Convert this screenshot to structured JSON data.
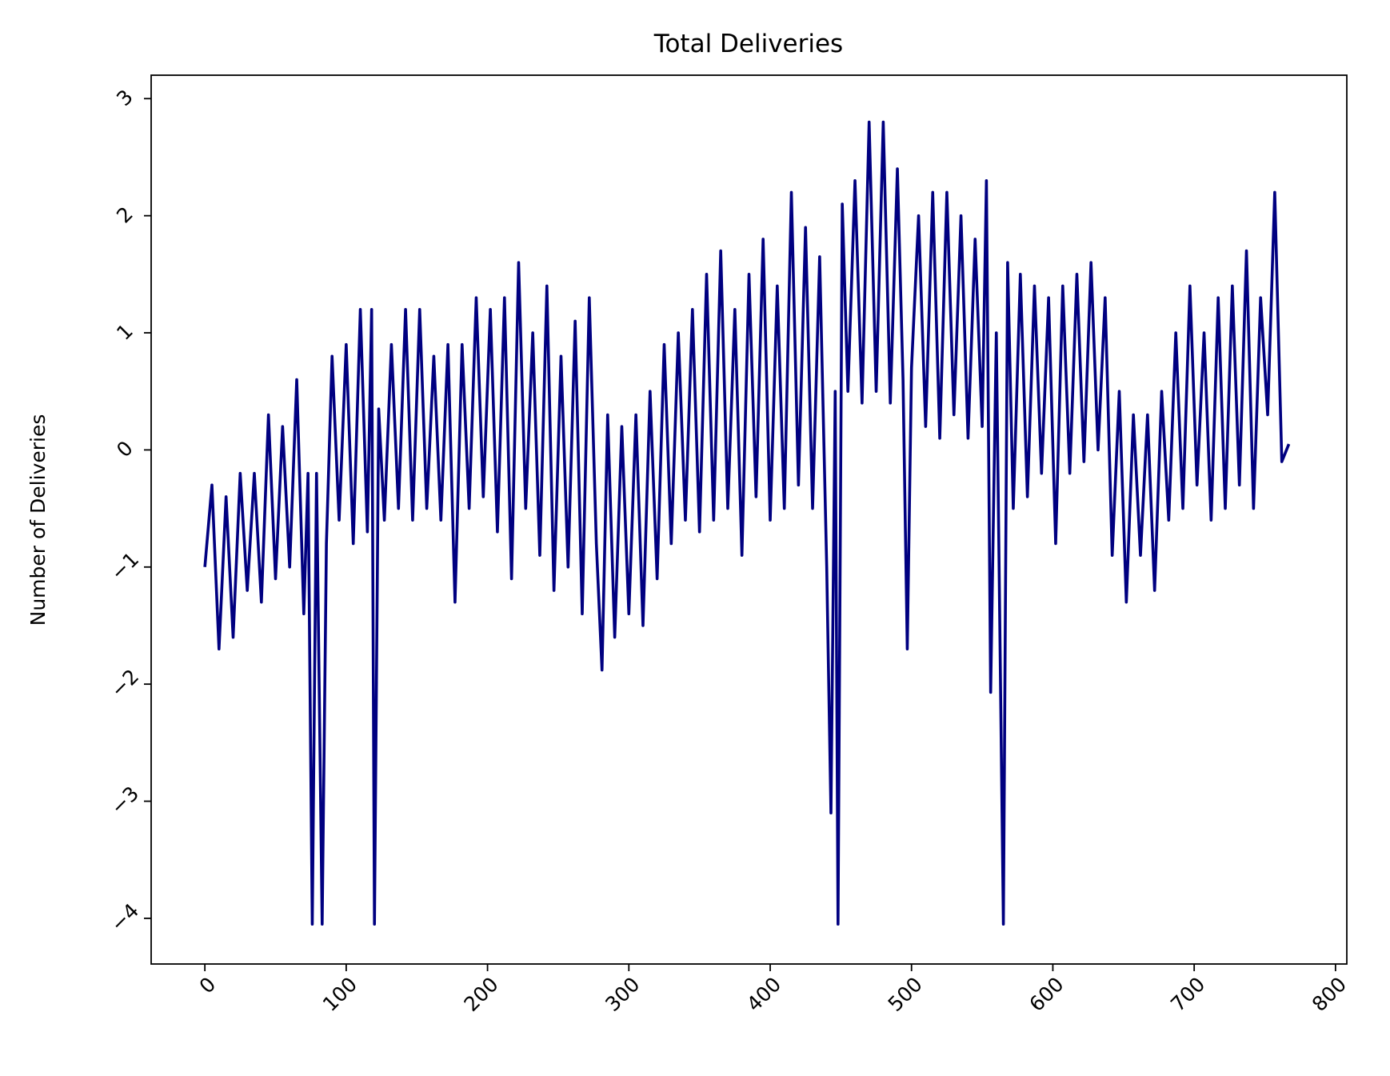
{
  "chart_data": {
    "type": "line",
    "title": "Total Deliveries",
    "y_label": "Number of Deliveries",
    "xlim": [
      -38,
      808
    ],
    "ylim": [
      -4.39,
      3.2
    ],
    "xticks": [
      0,
      100,
      200,
      300,
      400,
      500,
      600,
      700,
      800
    ],
    "yticks": [
      {
        "value": -4,
        "label": "−4"
      },
      {
        "value": -3,
        "label": "−3"
      },
      {
        "value": -2,
        "label": "−2"
      },
      {
        "value": -1,
        "label": "−1"
      },
      0,
      1,
      2,
      3
    ],
    "grid": false,
    "series": [
      {
        "name": "Total Deliveries",
        "color": "#000080",
        "x": [
          0,
          5,
          10,
          15,
          20,
          25,
          30,
          35,
          40,
          45,
          50,
          55,
          60,
          65,
          70,
          73,
          76,
          79,
          83,
          86,
          90,
          95,
          100,
          105,
          110,
          115,
          118,
          120,
          123,
          127,
          132,
          137,
          142,
          147,
          152,
          157,
          162,
          167,
          172,
          177,
          182,
          187,
          192,
          197,
          202,
          207,
          212,
          217,
          222,
          227,
          232,
          237,
          242,
          247,
          252,
          257,
          262,
          267,
          272,
          277,
          281,
          285,
          290,
          295,
          300,
          305,
          310,
          315,
          320,
          325,
          330,
          335,
          340,
          345,
          350,
          355,
          360,
          365,
          370,
          375,
          380,
          385,
          390,
          395,
          400,
          405,
          410,
          415,
          420,
          425,
          430,
          435,
          440,
          443,
          446,
          448,
          451,
          455,
          460,
          465,
          470,
          475,
          480,
          485,
          490,
          494,
          497,
          500,
          505,
          510,
          515,
          520,
          525,
          530,
          535,
          540,
          545,
          550,
          553,
          556,
          560,
          565,
          568,
          572,
          577,
          582,
          587,
          592,
          597,
          602,
          607,
          612,
          617,
          622,
          627,
          632,
          637,
          642,
          647,
          652,
          657,
          662,
          667,
          672,
          677,
          682,
          687,
          692,
          697,
          702,
          707,
          712,
          717,
          722,
          727,
          732,
          737,
          742,
          747,
          752,
          757,
          762,
          767
        ],
        "values": [
          -1.0,
          -0.3,
          -1.7,
          -0.4,
          -1.6,
          -0.2,
          -1.2,
          -0.2,
          -1.3,
          0.3,
          -1.1,
          0.2,
          -1.0,
          0.6,
          -1.4,
          -0.2,
          -4.05,
          -0.2,
          -4.05,
          -0.8,
          0.8,
          -0.6,
          0.9,
          -0.8,
          1.2,
          -0.7,
          1.2,
          -4.05,
          0.35,
          -0.6,
          0.9,
          -0.5,
          1.2,
          -0.6,
          1.2,
          -0.5,
          0.8,
          -0.6,
          0.9,
          -1.3,
          0.9,
          -0.5,
          1.3,
          -0.4,
          1.2,
          -0.7,
          1.3,
          -1.1,
          1.6,
          -0.5,
          1.0,
          -0.9,
          1.4,
          -1.2,
          0.8,
          -1.0,
          1.1,
          -1.4,
          1.3,
          -0.8,
          -1.88,
          0.3,
          -1.6,
          0.2,
          -1.4,
          0.3,
          -1.5,
          0.5,
          -1.1,
          0.9,
          -0.8,
          1.0,
          -0.6,
          1.2,
          -0.7,
          1.5,
          -0.6,
          1.7,
          -0.5,
          1.2,
          -0.9,
          1.5,
          -0.4,
          1.8,
          -0.6,
          1.4,
          -0.5,
          2.2,
          -0.3,
          1.9,
          -0.5,
          1.65,
          -1.0,
          -3.1,
          0.5,
          -4.05,
          2.1,
          0.5,
          2.3,
          0.4,
          2.8,
          0.5,
          2.8,
          0.4,
          2.4,
          0.6,
          -1.7,
          0.7,
          2.0,
          0.2,
          2.2,
          0.1,
          2.2,
          0.3,
          2.0,
          0.1,
          1.8,
          0.2,
          2.3,
          -2.07,
          1.0,
          -4.05,
          1.6,
          -0.5,
          1.5,
          -0.4,
          1.4,
          -0.2,
          1.3,
          -0.8,
          1.4,
          -0.2,
          1.5,
          -0.1,
          1.6,
          0.0,
          1.3,
          -0.9,
          0.5,
          -1.3,
          0.3,
          -0.9,
          0.3,
          -1.2,
          0.5,
          -0.6,
          1.0,
          -0.5,
          1.4,
          -0.3,
          1.0,
          -0.6,
          1.3,
          -0.5,
          1.4,
          -0.3,
          1.7,
          -0.5,
          1.3,
          0.3,
          2.2,
          -0.1,
          0.05
        ]
      }
    ]
  }
}
